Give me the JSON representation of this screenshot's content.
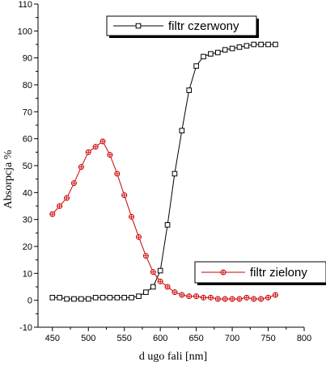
{
  "chart_data": {
    "type": "line",
    "title": "",
    "xlabel": "d ugo    fali [nm]",
    "ylabel": "Absorpcja %",
    "xlim": [
      430,
      800
    ],
    "ylim": [
      -10,
      110
    ],
    "xticks": [
      "450",
      "500",
      "550",
      "600",
      "650",
      "700",
      "750",
      "800"
    ],
    "yticks": [
      "-10",
      "0",
      "10",
      "20",
      "30",
      "40",
      "50",
      "60",
      "70",
      "80",
      "90",
      "100",
      "110"
    ],
    "grid": false,
    "series": [
      {
        "name": "filtr czerwony",
        "color": "#000000",
        "marker": "square",
        "legend_position": "top-center",
        "x": [
          450,
          460,
          470,
          480,
          490,
          500,
          510,
          520,
          530,
          540,
          550,
          560,
          570,
          580,
          590,
          600,
          610,
          620,
          630,
          640,
          650,
          660,
          670,
          680,
          690,
          700,
          710,
          720,
          730,
          740,
          750,
          760
        ],
        "values": [
          1,
          1,
          0.5,
          0.5,
          0.5,
          0.5,
          1,
          1,
          1,
          1,
          1,
          1,
          1.5,
          3,
          5,
          11,
          28,
          47,
          63,
          78,
          87,
          90.5,
          91.5,
          92,
          93,
          93.5,
          94,
          94.5,
          95,
          95,
          95,
          95
        ]
      },
      {
        "name": "filtr zielony",
        "color": "#cc0000",
        "marker": "circle-cross",
        "legend_position": "right",
        "x": [
          450,
          460,
          470,
          480,
          490,
          500,
          510,
          520,
          530,
          540,
          550,
          560,
          570,
          580,
          590,
          600,
          610,
          620,
          630,
          640,
          650,
          660,
          670,
          680,
          690,
          700,
          710,
          720,
          730,
          740,
          750,
          760
        ],
        "values": [
          32,
          35,
          38,
          43.5,
          49.5,
          55,
          57,
          59,
          54,
          47,
          39,
          31,
          23.5,
          16.5,
          10.5,
          7,
          5,
          3,
          2,
          1.5,
          1.5,
          1,
          1,
          0.5,
          0.5,
          0.5,
          0.5,
          1,
          0.5,
          0.5,
          1,
          2
        ]
      }
    ]
  }
}
